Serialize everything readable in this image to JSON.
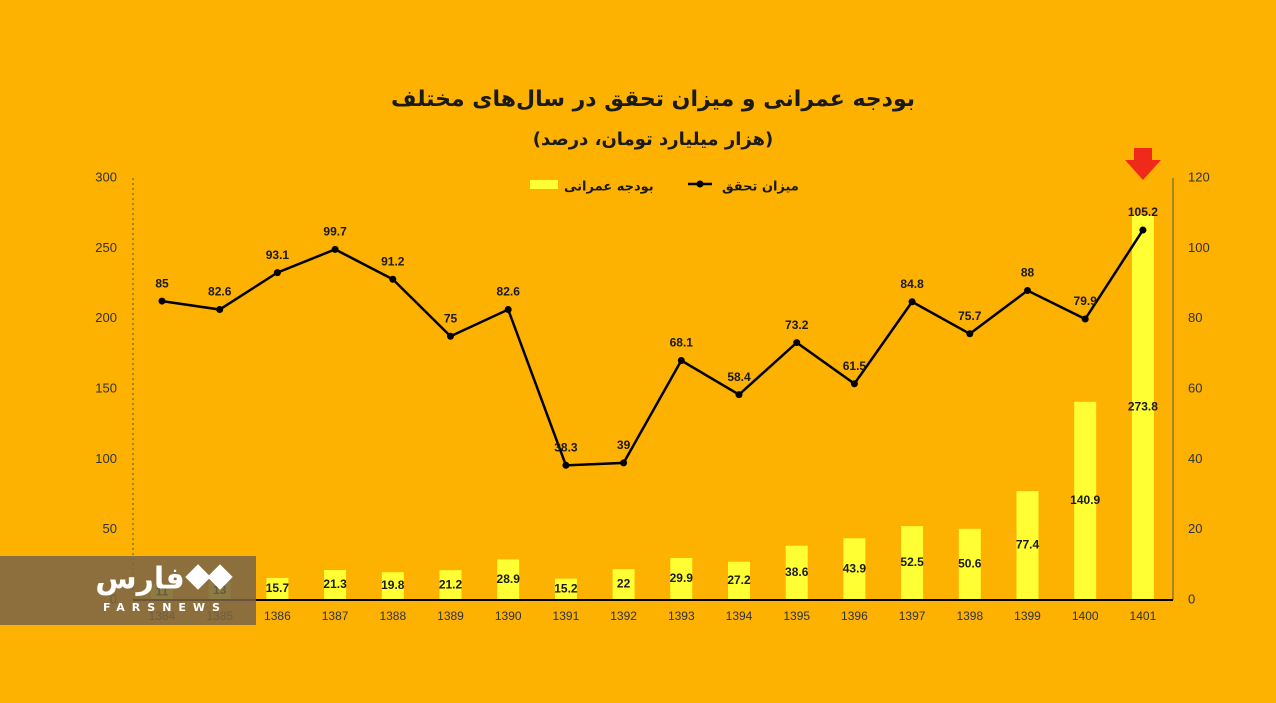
{
  "chart_data": {
    "type": "bar-line",
    "title": "بودجه عمرانی و میزان تحقق در سال‌های مختلف",
    "subtitle": "(هزار میلیارد تومان، درصد)",
    "categories": [
      "1384",
      "1385",
      "1386",
      "1387",
      "1388",
      "1389",
      "1390",
      "1391",
      "1392",
      "1393",
      "1394",
      "1395",
      "1396",
      "1397",
      "1398",
      "1399",
      "1400",
      "1401"
    ],
    "series": [
      {
        "name": "بودجه عمرانی",
        "type": "bar",
        "color": "#FFFF33",
        "values": [
          11,
          13,
          15.7,
          21.3,
          19.8,
          21.2,
          28.9,
          15.2,
          22,
          29.9,
          27.2,
          38.6,
          43.9,
          52.5,
          50.6,
          77.4,
          140.9,
          273.8
        ]
      },
      {
        "name": "میزان تحقق",
        "type": "line",
        "axis": "y2",
        "color": "#000000",
        "values": [
          85,
          82.6,
          93.1,
          99.7,
          91.2,
          75,
          82.6,
          38.3,
          39,
          68.1,
          58.4,
          73.2,
          61.5,
          84.8,
          75.7,
          88,
          79.9,
          105.2
        ]
      }
    ],
    "ylim": [
      0,
      300
    ],
    "yticks": [
      0,
      50,
      100,
      150,
      200,
      250,
      300
    ],
    "y2lim": [
      0,
      120
    ],
    "y2ticks": [
      0,
      20,
      40,
      60,
      80,
      100,
      120
    ]
  },
  "logo": {
    "name": "فارس",
    "sub": "FARSNEWS"
  }
}
